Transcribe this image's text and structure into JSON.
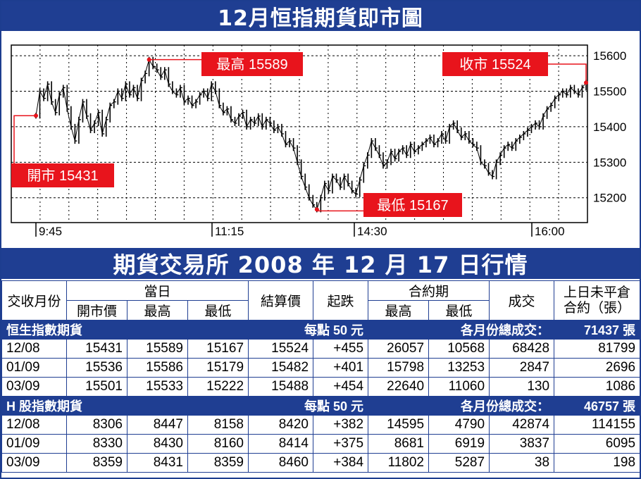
{
  "title": "12月恒指期貨即市圖",
  "subtitle": "期貨交易所 2008 年 12 月 17 日行情",
  "callouts": {
    "high": "最高 15589",
    "close": "收市 15524",
    "open": "開市 15431",
    "low": "最低 15167"
  },
  "chart_data": {
    "type": "line",
    "title": "12月恒指期貨即市圖",
    "xlabel": "",
    "ylabel": "",
    "x_ticks": [
      "9:45",
      "11:15",
      "14:30",
      "16:00"
    ],
    "y_ticks": [
      15200,
      15300,
      15400,
      15500,
      15600
    ],
    "ylim": [
      15130,
      15630
    ],
    "grid": true,
    "open": 15431,
    "high": 15589,
    "low": 15167,
    "close": 15524,
    "series": [
      {
        "values": [
          15431,
          15500,
          15480,
          15520,
          15470,
          15440,
          15490,
          15510,
          15450,
          15400,
          15360,
          15420,
          15470,
          15430,
          15390,
          15410,
          15440,
          15380,
          15420,
          15460,
          15470,
          15500,
          15480,
          15520,
          15490,
          15510,
          15480,
          15530,
          15550,
          15589,
          15570,
          15560,
          15540,
          15560,
          15520,
          15500,
          15490,
          15510,
          15470,
          15480,
          15460,
          15470,
          15490,
          15500,
          15480,
          15520,
          15500,
          15460,
          15440,
          15450,
          15420,
          15410,
          15430,
          15440,
          15400,
          15420,
          15410,
          15430,
          15400,
          15420,
          15410,
          15390,
          15400,
          15380,
          15350,
          15360,
          15340,
          15300,
          15260,
          15230,
          15200,
          15180,
          15167,
          15200,
          15240,
          15220,
          15260,
          15250,
          15230,
          15260,
          15240,
          15220,
          15210,
          15250,
          15290,
          15320,
          15360,
          15340,
          15320,
          15290,
          15300,
          15330,
          15310,
          15330,
          15340,
          15320,
          15350,
          15330,
          15340,
          15350,
          15360,
          15370,
          15350,
          15360,
          15380,
          15360,
          15400,
          15410,
          15390,
          15370,
          15380,
          15360,
          15350,
          15340,
          15300,
          15290,
          15270,
          15260,
          15300,
          15320,
          15340,
          15350,
          15340,
          15360,
          15370,
          15380,
          15390,
          15400,
          15410,
          15400,
          15430,
          15450,
          15460,
          15480,
          15490,
          15500,
          15490,
          15510,
          15500,
          15490,
          15510,
          15524
        ]
      }
    ]
  },
  "table": {
    "headers": {
      "month": "交收月份",
      "day": "當日",
      "open": "開市價",
      "high": "最高",
      "low": "最低",
      "settle": "結算價",
      "change": "起跌",
      "contract": "合約期",
      "c_high": "最高",
      "c_low": "最低",
      "volume": "成交",
      "oi": "上日未平倉合約（張）"
    },
    "sections": [
      {
        "name": "恒生指數期貨",
        "point_value": "每點 50 元",
        "total_label": "各月份總成交：",
        "total_value": "71437 張",
        "rows": [
          [
            "12/08",
            "15431",
            "15589",
            "15167",
            "15524",
            "+455",
            "26057",
            "10568",
            "68428",
            "81799"
          ],
          [
            "01/09",
            "15536",
            "15586",
            "15179",
            "15482",
            "+401",
            "15798",
            "13253",
            "2847",
            "2696"
          ],
          [
            "03/09",
            "15501",
            "15533",
            "15222",
            "15488",
            "+454",
            "22640",
            "11060",
            "130",
            "1086"
          ]
        ]
      },
      {
        "name": "H 股指數期貨",
        "point_value": "每點 50 元",
        "total_label": "各月份總成交：",
        "total_value": "46757 張",
        "rows": [
          [
            "12/08",
            "8306",
            "8447",
            "8158",
            "8420",
            "+382",
            "14595",
            "4790",
            "42874",
            "114155"
          ],
          [
            "01/09",
            "8330",
            "8430",
            "8160",
            "8414",
            "+375",
            "8681",
            "6919",
            "3837",
            "6095"
          ],
          [
            "03/09",
            "8359",
            "8431",
            "8359",
            "8460",
            "+384",
            "11802",
            "5287",
            "38",
            "198"
          ]
        ]
      }
    ]
  },
  "colors": {
    "navy": "#1f3e92",
    "red": "#e8141c"
  }
}
